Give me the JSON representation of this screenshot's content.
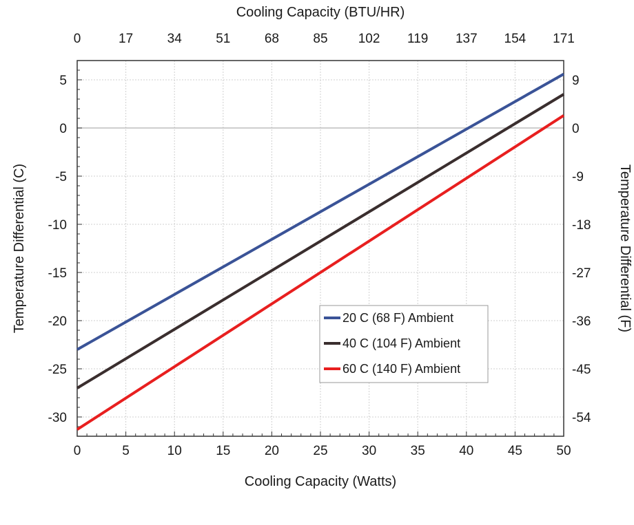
{
  "chart_data": {
    "type": "line",
    "title": "",
    "xlabel": "Cooling Capacity (Watts)",
    "ylabel": "Temperature Differential (C)",
    "x2label": "Cooling Capacity (BTU/HR)",
    "y2label": "Temperature Differential (F)",
    "xlim": [
      0,
      50
    ],
    "ylim": [
      -32,
      7
    ],
    "x_ticks": [
      "0",
      "5",
      "10",
      "15",
      "20",
      "25",
      "30",
      "35",
      "40",
      "45",
      "50"
    ],
    "y_ticks": [
      "5",
      "0",
      "-5",
      "-10",
      "-15",
      "-20",
      "-25",
      "-30"
    ],
    "x2_ticks": [
      "0",
      "17",
      "34",
      "51",
      "68",
      "85",
      "102",
      "119",
      "137",
      "154",
      "171"
    ],
    "y2_ticks": [
      "9",
      "0",
      "-9",
      "-18",
      "-27",
      "-36",
      "-45",
      "-54"
    ],
    "grid": true,
    "legend": "center-right",
    "series": [
      {
        "name": "20 C (68 F) Ambient",
        "color": "#3a5397",
        "x": [
          0,
          50
        ],
        "y": [
          -23.0,
          5.6
        ]
      },
      {
        "name": "40 C (104 F) Ambient",
        "color": "#3a2e2e",
        "x": [
          0,
          50
        ],
        "y": [
          -27.0,
          3.5
        ]
      },
      {
        "name": "60 C (140 F) Ambient",
        "color": "#e81f1f",
        "x": [
          0,
          50
        ],
        "y": [
          -31.3,
          1.3
        ]
      }
    ]
  }
}
